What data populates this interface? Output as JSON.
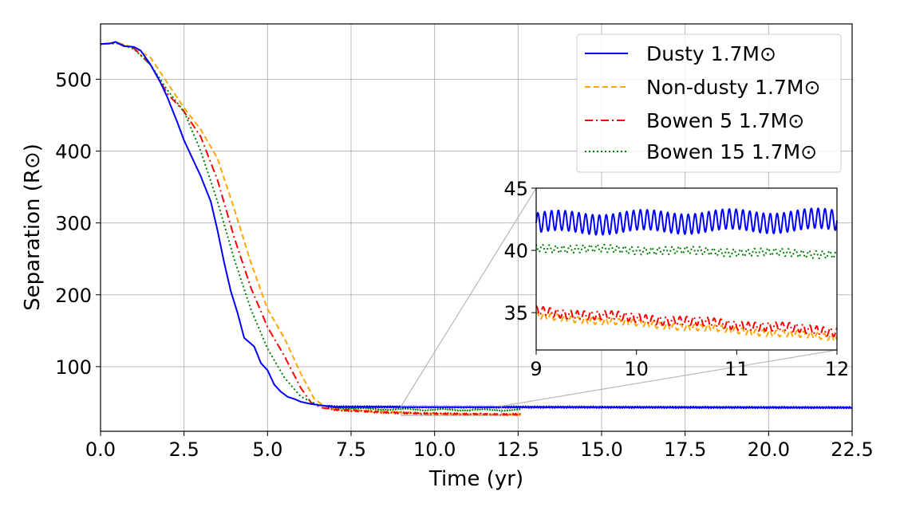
{
  "chart_data": {
    "type": "line",
    "xlabel": "Time (yr)",
    "ylabel": "Separation (R⊙)",
    "xlim": [
      0,
      22.5
    ],
    "ylim": [
      10,
      577
    ],
    "xticks": [
      "0.0",
      "2.5",
      "5.0",
      "7.5",
      "10.0",
      "12.5",
      "15.0",
      "17.5",
      "20.0",
      "22.5"
    ],
    "yticks": [
      "100",
      "200",
      "300",
      "400",
      "500"
    ],
    "grid": true,
    "legend_position": "top-right",
    "series": [
      {
        "name": "Dusty 1.7M⊙",
        "color": "#0000ff",
        "dash": "solid",
        "x": [
          0,
          0.3,
          0.45,
          0.7,
          1.0,
          1.2,
          1.5,
          1.8,
          2.0,
          2.3,
          2.5,
          2.8,
          3.0,
          3.3,
          3.5,
          3.7,
          3.9,
          4.1,
          4.3,
          4.5,
          4.6,
          4.8,
          5.0,
          5.2,
          5.4,
          5.6,
          5.8,
          6.0,
          6.3,
          6.6,
          7.0,
          22.5
        ],
        "y": [
          549,
          550,
          552,
          546,
          545,
          540,
          520,
          495,
          475,
          440,
          415,
          385,
          365,
          330,
          290,
          245,
          205,
          175,
          140,
          132,
          128,
          105,
          95,
          75,
          65,
          58,
          55,
          51,
          48,
          46,
          44,
          43
        ]
      },
      {
        "name": "Non-dusty 1.7M⊙",
        "color": "#ffa500",
        "dash": "dashed",
        "x": [
          0,
          0.5,
          1.0,
          1.5,
          2.0,
          2.5,
          3.0,
          3.5,
          4.0,
          4.5,
          5.0,
          5.5,
          6.0,
          6.4,
          6.7,
          7.0,
          8.0,
          9.0,
          10.0,
          11.0,
          12.0,
          12.6
        ],
        "y": [
          549,
          551,
          544,
          530,
          495,
          460,
          430,
          390,
          320,
          245,
          180,
          140,
          90,
          55,
          45,
          41,
          38,
          36,
          34,
          33.5,
          33,
          33
        ]
      },
      {
        "name": "Bowen 5 1.7M⊙",
        "color": "#ff0000",
        "dash": "dashdot",
        "x": [
          0,
          0.5,
          1.0,
          1.5,
          2.0,
          2.5,
          3.0,
          3.5,
          4.0,
          4.5,
          5.0,
          5.5,
          6.0,
          6.3,
          6.6,
          7.0,
          8.0,
          9.0,
          10.0,
          11.0,
          12.0,
          12.6
        ],
        "y": [
          549,
          550,
          543,
          520,
          480,
          455,
          420,
          360,
          280,
          210,
          155,
          115,
          70,
          50,
          43,
          40,
          37.5,
          35.5,
          34.5,
          34,
          33.5,
          33.5
        ]
      },
      {
        "name": "Bowen 15 1.7M⊙",
        "color": "#008000",
        "dash": "dotted",
        "x": [
          0,
          0.5,
          1.0,
          1.5,
          2.0,
          2.5,
          3.0,
          3.5,
          4.0,
          4.5,
          5.0,
          5.5,
          6.0,
          6.5,
          7.0,
          8.0,
          9.0,
          10.0,
          11.0,
          12.0,
          12.6
        ],
        "y": [
          549,
          550,
          542,
          520,
          485,
          455,
          400,
          330,
          250,
          180,
          125,
          85,
          58,
          47,
          43,
          41,
          40.5,
          40,
          39.8,
          39.6,
          39.5
        ]
      }
    ],
    "inset": {
      "xlim": [
        9,
        12
      ],
      "ylim": [
        32,
        45
      ],
      "xticks": [
        "9",
        "10",
        "11",
        "12"
      ],
      "yticks": [
        "35",
        "40",
        "45"
      ],
      "series_summary": [
        {
          "name": "Dusty 1.7M⊙",
          "center_start": 42.2,
          "center_end": 42.4,
          "amplitude": 0.8,
          "oscillations": 44
        },
        {
          "name": "Non-dusty 1.7M⊙",
          "center_start": 34.7,
          "center_end": 33.0,
          "amplitude": 0.25,
          "oscillations": 44
        },
        {
          "name": "Bowen 5 1.7M⊙",
          "center_start": 35.1,
          "center_end": 33.5,
          "amplitude": 0.35,
          "oscillations": 44
        },
        {
          "name": "Bowen 15 1.7M⊙",
          "center_start": 40.2,
          "center_end": 39.7,
          "amplitude": 0.3,
          "oscillations": 44
        }
      ]
    }
  }
}
